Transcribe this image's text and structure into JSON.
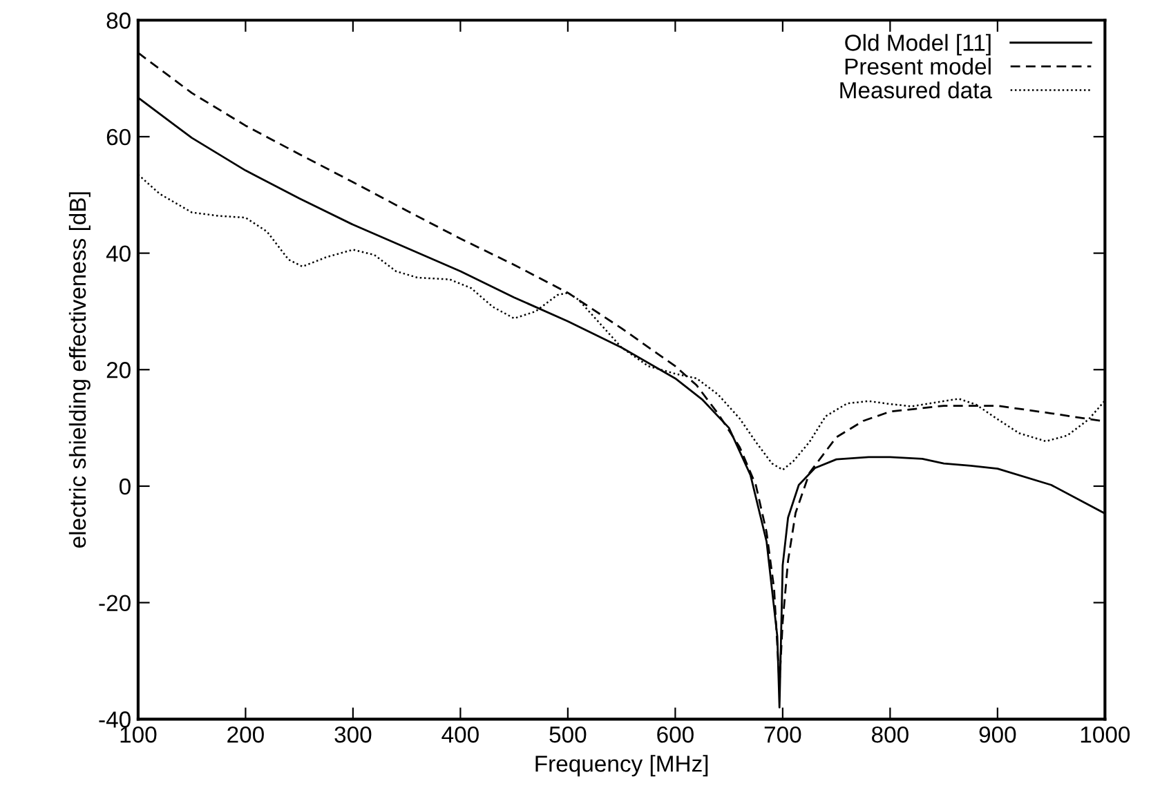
{
  "chart_data": {
    "type": "line",
    "xlabel": "Frequency [MHz]",
    "ylabel": "electric shielding effectiveness [dB]",
    "xlim": [
      100,
      1000
    ],
    "ylim": [
      -40,
      80
    ],
    "xticks": [
      100,
      200,
      300,
      400,
      500,
      600,
      700,
      800,
      900,
      1000
    ],
    "yticks": [
      -40,
      -20,
      0,
      20,
      40,
      60,
      80
    ],
    "grid": false,
    "legend": "top right",
    "marker": "none",
    "series": [
      {
        "name": "Old Model [11]",
        "color": "#000000",
        "line_style": "solid",
        "x": [
          100,
          150,
          200,
          250,
          300,
          350,
          400,
          450,
          500,
          550,
          600,
          625,
          650,
          670,
          685,
          695,
          697,
          700,
          705,
          715,
          730,
          750,
          780,
          800,
          830,
          850,
          875,
          900,
          950,
          1000
        ],
        "values": [
          66.7,
          59.8,
          54.2,
          49.4,
          44.9,
          40.9,
          36.9,
          32.4,
          28.3,
          23.8,
          18.5,
          14.9,
          10,
          1.9,
          -9.5,
          -25.8,
          -38,
          -13.6,
          -5.4,
          0.2,
          3.1,
          4.6,
          5,
          5,
          4.7,
          3.9,
          3.5,
          3.0,
          0.2,
          -4.7
        ]
      },
      {
        "name": "Present model",
        "color": "#000000",
        "line_style": "dashed",
        "x": [
          100,
          150,
          200,
          250,
          300,
          350,
          400,
          450,
          500,
          550,
          600,
          620,
          640,
          660,
          675,
          685,
          692,
          697,
          700,
          705,
          712,
          725,
          750,
          775,
          800,
          850,
          900,
          950,
          1000
        ],
        "values": [
          74.4,
          67.5,
          61.9,
          57,
          52.2,
          47.3,
          42.5,
          38,
          33.2,
          27.1,
          20.6,
          17.3,
          12.4,
          6.7,
          0.2,
          -7.9,
          -17.6,
          -33.9,
          -23.3,
          -12.8,
          -4.6,
          2.3,
          8.4,
          11.2,
          12.8,
          13.8,
          13.8,
          12.5,
          11.1
        ]
      },
      {
        "name": "Measured data",
        "color": "#000000",
        "line_style": "dotted",
        "x": [
          100,
          120,
          150,
          175,
          200,
          220,
          240,
          253,
          275,
          300,
          320,
          340,
          360,
          390,
          410,
          430,
          450,
          470,
          490,
          500,
          510,
          530,
          550,
          575,
          600,
          620,
          640,
          660,
          675,
          690,
          700,
          710,
          725,
          740,
          760,
          780,
          800,
          820,
          850,
          864,
          880,
          900,
          920,
          945,
          965,
          985,
          1000
        ],
        "values": [
          53.5,
          50.2,
          47,
          46.4,
          46.1,
          43.7,
          38.9,
          37.7,
          39.3,
          40.6,
          39.7,
          36.9,
          35.8,
          35.5,
          34,
          30.8,
          28.8,
          30,
          32.8,
          33.2,
          32,
          27.9,
          23.8,
          20.6,
          19.3,
          18.5,
          15.7,
          11.6,
          7.6,
          3.9,
          2.8,
          4.3,
          7.6,
          12,
          14.2,
          14.6,
          14.1,
          13.7,
          14.6,
          15,
          14,
          11.5,
          9.1,
          7.7,
          8.7,
          11.5,
          14.7
        ]
      }
    ]
  }
}
